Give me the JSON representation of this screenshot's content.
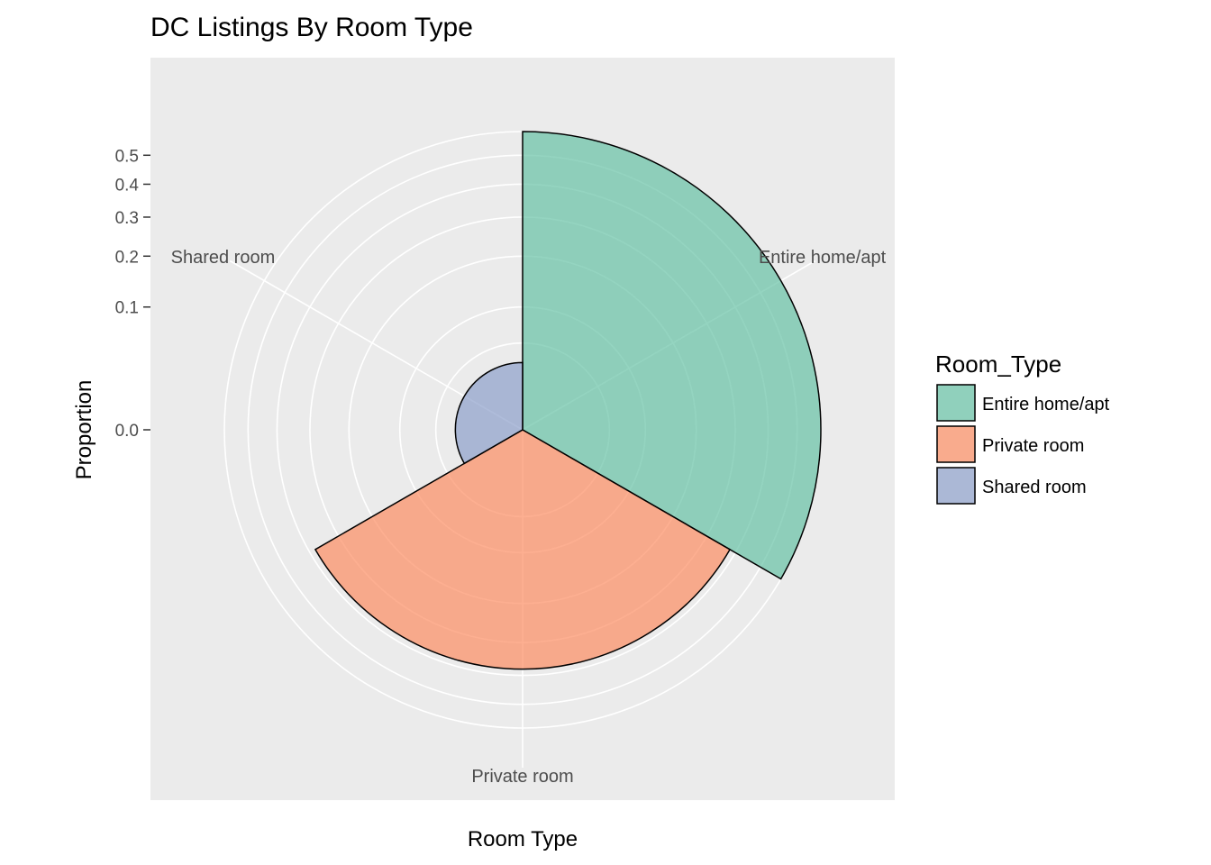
{
  "chart_data": {
    "type": "polar-bar",
    "title": "DC Listings By Room Type",
    "xlabel": "Room Type",
    "ylabel": "Proportion",
    "categories": [
      "Entire home/apt",
      "Private room",
      "Shared room"
    ],
    "values": [
      0.59,
      0.38,
      0.03
    ],
    "colors": [
      "#66c2a5",
      "#fc8d62",
      "#8da0cb"
    ],
    "y_ticks": [
      "0.0",
      "0.1",
      "0.2",
      "0.3",
      "0.4",
      "0.5"
    ],
    "y_scale": "sqrt",
    "ylim": [
      0,
      0.59
    ],
    "legend": {
      "title": "Room_Type",
      "position": "right",
      "entries": [
        "Entire home/apt",
        "Private room",
        "Shared room"
      ]
    },
    "grid": true
  }
}
